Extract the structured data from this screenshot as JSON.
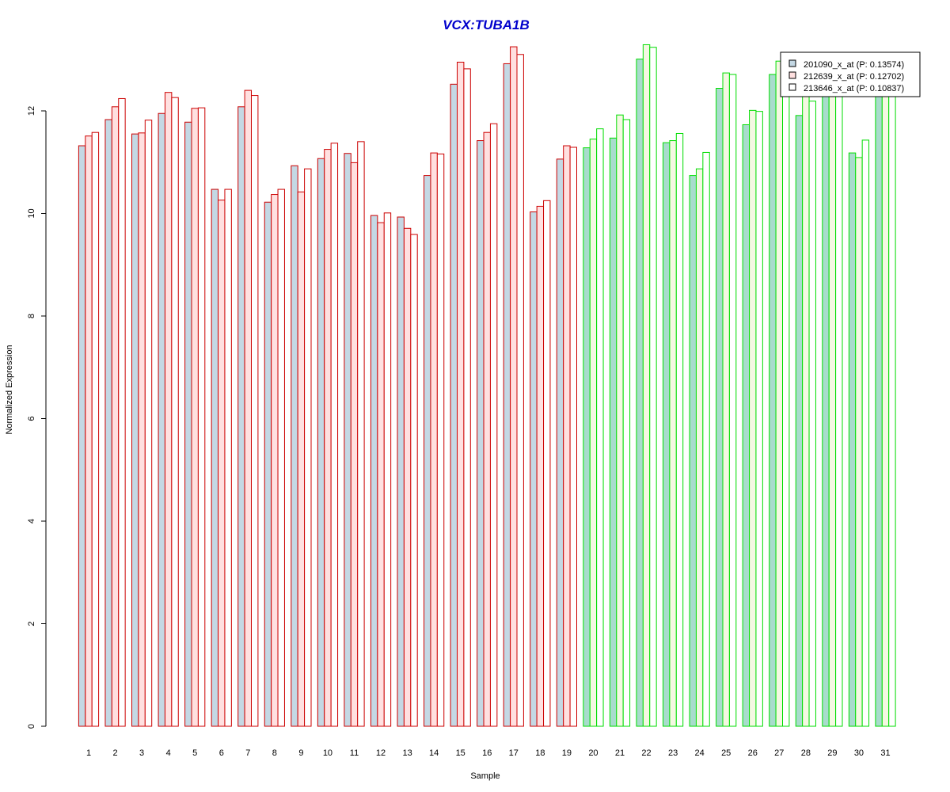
{
  "colors": {
    "title": "#0000cc",
    "group_a_outline": "#cc0000",
    "group_b_outline": "#00dd00",
    "fill_a": "#c4d8e4",
    "fill_b": "#ffe0e0",
    "fill_c": "#ffffff",
    "fill_a_g2": "#a8dccc",
    "fill_b_g2": "#f4f8e2",
    "fill_c_g2": "#ffffff"
  },
  "chart_data": {
    "type": "bar",
    "title": "VCX:TUBA1B",
    "xlabel": "Sample",
    "ylabel": "Normalized Expression",
    "ylim": [
      0,
      13.3
    ],
    "yticks": [
      0,
      2,
      4,
      6,
      8,
      10,
      12
    ],
    "grid": false,
    "legend_position": "top-right",
    "categories": [
      "1",
      "2",
      "3",
      "4",
      "5",
      "6",
      "7",
      "8",
      "9",
      "10",
      "11",
      "12",
      "13",
      "14",
      "15",
      "16",
      "17",
      "18",
      "19",
      "20",
      "21",
      "22",
      "23",
      "24",
      "25",
      "26",
      "27",
      "28",
      "29",
      "30",
      "31"
    ],
    "group_of_category": [
      "a",
      "a",
      "a",
      "a",
      "a",
      "a",
      "a",
      "a",
      "a",
      "a",
      "a",
      "a",
      "a",
      "a",
      "a",
      "a",
      "a",
      "a",
      "a",
      "b",
      "b",
      "b",
      "b",
      "b",
      "b",
      "b",
      "b",
      "b",
      "b",
      "b",
      "b"
    ],
    "series": [
      {
        "name": "201090_x_at (P: 0.13574)",
        "values": [
          11.32,
          11.83,
          11.55,
          11.95,
          11.78,
          10.47,
          12.08,
          10.22,
          10.93,
          11.07,
          11.17,
          9.96,
          9.93,
          10.74,
          12.52,
          11.42,
          12.92,
          10.03,
          11.06,
          11.28,
          11.47,
          13.01,
          11.38,
          10.74,
          12.44,
          11.73,
          12.71,
          11.91,
          12.6,
          11.18,
          12.6
        ]
      },
      {
        "name": "212639_x_at (P: 0.12702)",
        "values": [
          11.51,
          12.08,
          11.57,
          12.36,
          12.05,
          10.26,
          12.4,
          10.37,
          10.42,
          11.25,
          10.99,
          9.82,
          9.71,
          11.18,
          12.95,
          11.58,
          13.25,
          10.14,
          11.32,
          11.45,
          11.92,
          13.29,
          11.42,
          10.87,
          12.74,
          12.01,
          12.97,
          12.47,
          12.9,
          11.09,
          12.8
        ]
      },
      {
        "name": "213646_x_at (P: 0.10837)",
        "values": [
          11.58,
          12.24,
          11.82,
          12.26,
          12.06,
          10.47,
          12.3,
          10.47,
          10.87,
          11.37,
          11.4,
          10.01,
          9.59,
          11.16,
          12.82,
          11.75,
          13.1,
          10.25,
          11.29,
          11.65,
          11.83,
          13.24,
          11.56,
          11.19,
          12.71,
          11.99,
          12.8,
          12.19,
          12.7,
          11.43,
          12.7
        ]
      }
    ]
  }
}
